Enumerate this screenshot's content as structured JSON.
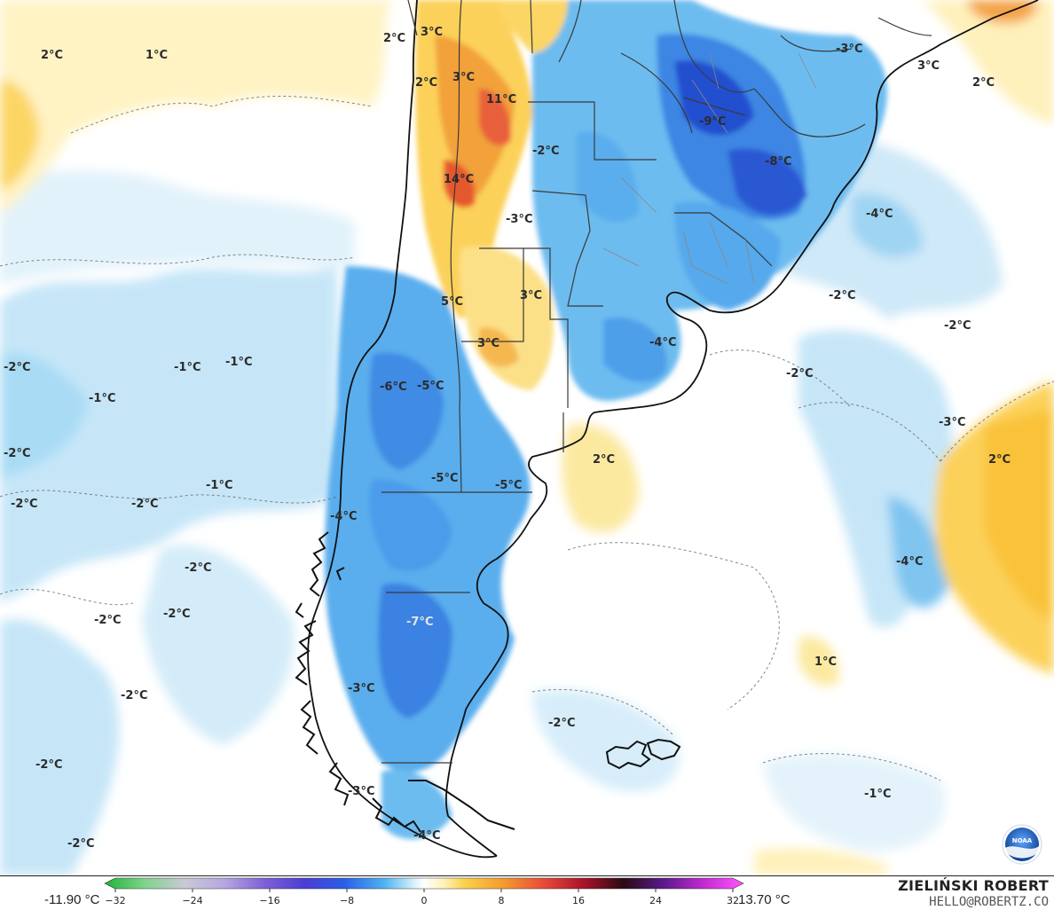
{
  "colors": {
    "ocean_neutral": "#ffffff",
    "cold_light": "#cde9f8",
    "cold_mid": "#8fd0f2",
    "cold_strong": "#4ea6ea",
    "cold_deep": "#2f6fe0",
    "cold_extreme": "#1f3fc8",
    "warm_light": "#fff0b8",
    "warm_mid": "#fcd25a",
    "warm_strong": "#f2a13a",
    "warm_hot": "#e8603a",
    "coast": "#111111",
    "borders": "#444444"
  },
  "map_labels": [
    {
      "id": "l1",
      "text": "2°C"
    },
    {
      "id": "l2",
      "text": "1°C"
    },
    {
      "id": "l3",
      "text": "2°C"
    },
    {
      "id": "l4",
      "text": "3°C"
    },
    {
      "id": "l5",
      "text": "2°C"
    },
    {
      "id": "l6",
      "text": "3°C"
    },
    {
      "id": "l7",
      "text": "11°C"
    },
    {
      "id": "l8",
      "text": "-2°C"
    },
    {
      "id": "l9",
      "text": "14°C"
    },
    {
      "id": "l10",
      "text": "-3°C"
    },
    {
      "id": "l11",
      "text": "-9°C"
    },
    {
      "id": "l12",
      "text": "-8°C"
    },
    {
      "id": "l13",
      "text": "-3°C"
    },
    {
      "id": "l14",
      "text": "3°C"
    },
    {
      "id": "l15",
      "text": "2°C"
    },
    {
      "id": "l16",
      "text": "-4°C"
    },
    {
      "id": "l17",
      "text": "5°C"
    },
    {
      "id": "l18",
      "text": "3°C"
    },
    {
      "id": "l19",
      "text": "3°C"
    },
    {
      "id": "l20",
      "text": "-2°C"
    },
    {
      "id": "l21",
      "text": "-2°C"
    },
    {
      "id": "l22",
      "text": "-4°C"
    },
    {
      "id": "l23",
      "text": "-2°C"
    },
    {
      "id": "l24",
      "text": "-1°C"
    },
    {
      "id": "l25",
      "text": "-1°C"
    },
    {
      "id": "l26",
      "text": "-2°C"
    },
    {
      "id": "l27",
      "text": "-6°C"
    },
    {
      "id": "l28",
      "text": "-5°C"
    },
    {
      "id": "l29",
      "text": "-1°C"
    },
    {
      "id": "l30",
      "text": "-2°C"
    },
    {
      "id": "l31",
      "text": "-3°C"
    },
    {
      "id": "l32",
      "text": "2°C"
    },
    {
      "id": "l33",
      "text": "2°C"
    },
    {
      "id": "l34",
      "text": "-1°C"
    },
    {
      "id": "l35",
      "text": "-5°C"
    },
    {
      "id": "l36",
      "text": "-5°C"
    },
    {
      "id": "l37",
      "text": "-2°C"
    },
    {
      "id": "l38",
      "text": "-2°C"
    },
    {
      "id": "l39",
      "text": "-4°C"
    },
    {
      "id": "l40",
      "text": "-4°C"
    },
    {
      "id": "l41",
      "text": "-2°C"
    },
    {
      "id": "l42",
      "text": "-2°C"
    },
    {
      "id": "l43",
      "text": "-2°C"
    },
    {
      "id": "l44",
      "text": "-7°C"
    },
    {
      "id": "l45",
      "text": "1°C"
    },
    {
      "id": "l46",
      "text": "-2°C"
    },
    {
      "id": "l47",
      "text": "-3°C"
    },
    {
      "id": "l48",
      "text": "-2°C"
    },
    {
      "id": "l49",
      "text": "-2°C"
    },
    {
      "id": "l50",
      "text": "-1°C"
    },
    {
      "id": "l51",
      "text": "-3°C"
    },
    {
      "id": "l52",
      "text": "-2°C"
    },
    {
      "id": "l53",
      "text": "-4°C"
    }
  ],
  "legend": {
    "min_label": "-11.90 °C",
    "max_label": "13.70 °C",
    "ticks": [
      {
        "value": -32,
        "label": "−32"
      },
      {
        "value": -24,
        "label": "−24"
      },
      {
        "value": -16,
        "label": "−16"
      },
      {
        "value": -8,
        "label": "−8"
      },
      {
        "value": 0,
        "label": "0"
      },
      {
        "value": 8,
        "label": "8"
      },
      {
        "value": 16,
        "label": "16"
      },
      {
        "value": 24,
        "label": "24"
      },
      {
        "value": 32,
        "label": "32"
      }
    ],
    "range": [
      -32,
      32
    ],
    "stops": [
      {
        "value": -32,
        "color": "#22b33a"
      },
      {
        "value": -28,
        "color": "#7fd38a"
      },
      {
        "value": -24,
        "color": "#c9c9d6"
      },
      {
        "value": -20,
        "color": "#b7a6e0"
      },
      {
        "value": -16,
        "color": "#7f5fd8"
      },
      {
        "value": -12,
        "color": "#4a3fd0"
      },
      {
        "value": -8,
        "color": "#2a5ee8"
      },
      {
        "value": -4,
        "color": "#4fb2f2"
      },
      {
        "value": -1,
        "color": "#d8f0fb"
      },
      {
        "value": 0,
        "color": "#ffffff"
      },
      {
        "value": 2,
        "color": "#fff2b8"
      },
      {
        "value": 4,
        "color": "#fcd24a"
      },
      {
        "value": 8,
        "color": "#f29a2e"
      },
      {
        "value": 12,
        "color": "#e84a3a"
      },
      {
        "value": 16,
        "color": "#a8122a"
      },
      {
        "value": 20,
        "color": "#2a0a12"
      },
      {
        "value": 24,
        "color": "#5a1a8a"
      },
      {
        "value": 28,
        "color": "#c22ad0"
      },
      {
        "value": 32,
        "color": "#ff55ff"
      }
    ]
  },
  "credit": {
    "name": "ZIELIŃSKI ROBERT",
    "email": "HELLO@ROBERTZ.CO"
  },
  "logo": {
    "text": "NOAA",
    "icon": "noaa-logo"
  }
}
